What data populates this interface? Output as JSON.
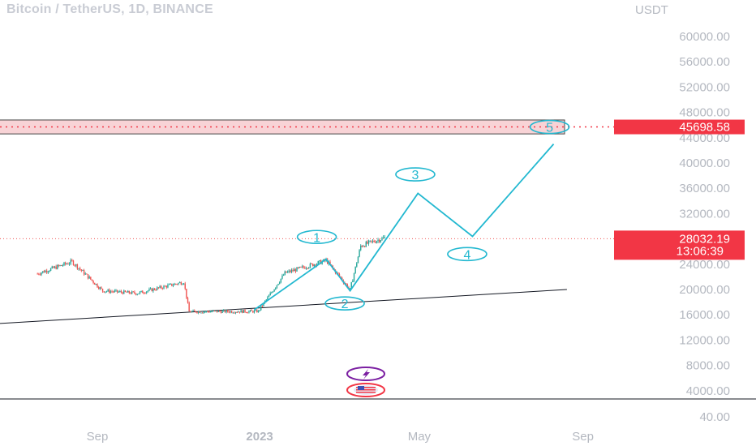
{
  "header": {
    "title": "Bitcoin / TetherUS, 1D, BINANCE"
  },
  "colors": {
    "up": "#26a69a",
    "down": "#ef5350",
    "wave": "#22b8d0",
    "target_zone_fill": "#f8d3d6",
    "tag_red": "#f23645",
    "trendline": "#131722",
    "axis_text": "#b4b8c0",
    "event_purple": "#7b1fa2"
  },
  "icons": [
    "lightning-event-icon",
    "us-flag-event-icon"
  ],
  "chart_data": {
    "type": "candlestick",
    "title": "Bitcoin / TetherUS, 1D, BINANCE",
    "y_unit": "USDT",
    "y_ticks": [
      "60000.00",
      "56000.00",
      "52000.00",
      "48000.00",
      "44000.00",
      "40000.00",
      "36000.00",
      "32000.00",
      "24000.00",
      "20000.00",
      "16000.00",
      "12000.00",
      "8000.00",
      "4000.00",
      "40.00"
    ],
    "x_ticks": [
      "Sep",
      "2023",
      "May",
      "Sep"
    ],
    "ylim": [
      0,
      62000
    ],
    "grid": false,
    "price_series": {
      "name": "BTCUSDT",
      "start": "2022-07-18",
      "end": "2023-04-05",
      "approx_closes": [
        {
          "date": "2022-07-18",
          "price": 22500
        },
        {
          "date": "2022-08-13",
          "price": 24400
        },
        {
          "date": "2022-09-05",
          "price": 19800
        },
        {
          "date": "2022-10-01",
          "price": 19400
        },
        {
          "date": "2022-11-05",
          "price": 21200
        },
        {
          "date": "2022-11-09",
          "price": 16500
        },
        {
          "date": "2022-12-31",
          "price": 16550
        },
        {
          "date": "2023-01-20",
          "price": 22600
        },
        {
          "date": "2023-02-20",
          "price": 24600
        },
        {
          "date": "2023-03-10",
          "price": 20000
        },
        {
          "date": "2023-03-18",
          "price": 26900
        },
        {
          "date": "2023-04-05",
          "price": 28200
        }
      ]
    },
    "current_price": {
      "value": "28032.19",
      "countdown": "13:06:39"
    },
    "target_zone": {
      "low": 44600,
      "high": 46800,
      "level": "45698.58"
    },
    "trendline": {
      "points": [
        {
          "date": "2022-05-01",
          "price": 14000
        },
        {
          "date": "2023-08-20",
          "price": 20000
        }
      ]
    },
    "wave_projection": {
      "points": [
        {
          "date": "2022-12-28",
          "price": 16800
        },
        {
          "date": "2023-02-20",
          "price": 24800
        },
        {
          "date": "2023-03-10",
          "price": 19800
        },
        {
          "date": "2023-04-30",
          "price": 35200
        },
        {
          "date": "2023-06-10",
          "price": 28400
        },
        {
          "date": "2023-08-10",
          "price": 43000
        }
      ],
      "labels": [
        {
          "text": "1",
          "date": "2023-02-13",
          "price": 28300
        },
        {
          "text": "2",
          "date": "2023-03-06",
          "price": 17800
        },
        {
          "text": "3",
          "date": "2023-04-28",
          "price": 38200
        },
        {
          "text": "4",
          "date": "2023-06-06",
          "price": 25600
        },
        {
          "text": "5",
          "date": "2023-08-07",
          "price": 45700
        }
      ]
    }
  }
}
